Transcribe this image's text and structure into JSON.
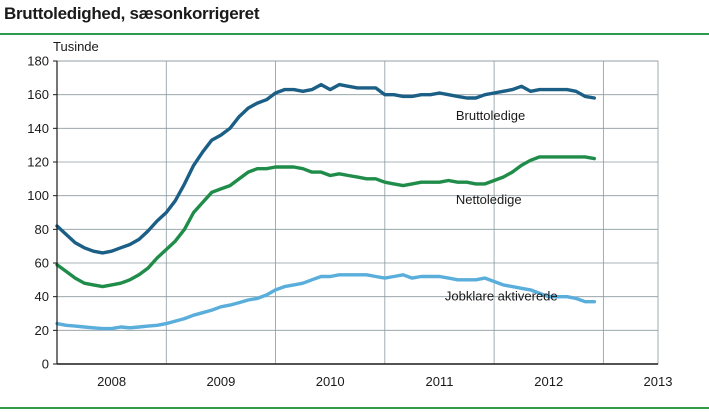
{
  "header": {
    "title": "Bruttoledighed, sæsonkorrigeret"
  },
  "colors": {
    "rule": "#2e9a4a",
    "grid": "#8c9aa0",
    "axis": "#1a1a1a"
  },
  "chart_data": {
    "type": "line",
    "title": "Bruttoledighed, sæsonkorrigeret",
    "ylabel": "Tusinde",
    "xlabel": "",
    "ylim": [
      0,
      180
    ],
    "xlim": [
      2008.0,
      2013.5
    ],
    "yticks": [
      0,
      20,
      40,
      60,
      80,
      100,
      120,
      140,
      160,
      180
    ],
    "x_tick_labels": [
      "2008",
      "2009",
      "2010",
      "2011",
      "2012",
      "2013"
    ],
    "grid": true,
    "series": [
      {
        "name": "Bruttoledige",
        "color": "#1c5f86",
        "x": [
          2008.0,
          2008.083,
          2008.167,
          2008.25,
          2008.333,
          2008.417,
          2008.5,
          2008.583,
          2008.667,
          2008.75,
          2008.833,
          2008.917,
          2009.0,
          2009.083,
          2009.167,
          2009.25,
          2009.333,
          2009.417,
          2009.5,
          2009.583,
          2009.667,
          2009.75,
          2009.833,
          2009.917,
          2010.0,
          2010.083,
          2010.167,
          2010.25,
          2010.333,
          2010.417,
          2010.5,
          2010.583,
          2010.667,
          2010.75,
          2010.833,
          2010.917,
          2011.0,
          2011.083,
          2011.167,
          2011.25,
          2011.333,
          2011.417,
          2011.5,
          2011.583,
          2011.667,
          2011.75,
          2011.833,
          2011.917,
          2012.0,
          2012.083,
          2012.167,
          2012.25,
          2012.333,
          2012.417,
          2012.5,
          2012.583,
          2012.667,
          2012.75,
          2012.833,
          2012.917
        ],
        "values": [
          82,
          77,
          72,
          69,
          67,
          66,
          67,
          69,
          71,
          74,
          79,
          85,
          90,
          97,
          107,
          118,
          126,
          133,
          136,
          140,
          147,
          152,
          155,
          157,
          161,
          163,
          163,
          162,
          163,
          166,
          163,
          166,
          165,
          164,
          164,
          164,
          160,
          160,
          159,
          159,
          160,
          160,
          161,
          160,
          159,
          158,
          158,
          160,
          161,
          162,
          163,
          165,
          162,
          163,
          163,
          163,
          163,
          162,
          159,
          158
        ]
      },
      {
        "name": "Nettoledige",
        "color": "#1f8c4a",
        "x": [
          2008.0,
          2008.083,
          2008.167,
          2008.25,
          2008.333,
          2008.417,
          2008.5,
          2008.583,
          2008.667,
          2008.75,
          2008.833,
          2008.917,
          2009.0,
          2009.083,
          2009.167,
          2009.25,
          2009.333,
          2009.417,
          2009.5,
          2009.583,
          2009.667,
          2009.75,
          2009.833,
          2009.917,
          2010.0,
          2010.083,
          2010.167,
          2010.25,
          2010.333,
          2010.417,
          2010.5,
          2010.583,
          2010.667,
          2010.75,
          2010.833,
          2010.917,
          2011.0,
          2011.083,
          2011.167,
          2011.25,
          2011.333,
          2011.417,
          2011.5,
          2011.583,
          2011.667,
          2011.75,
          2011.833,
          2011.917,
          2012.0,
          2012.083,
          2012.167,
          2012.25,
          2012.333,
          2012.417,
          2012.5,
          2012.583,
          2012.667,
          2012.75,
          2012.833,
          2012.917
        ],
        "values": [
          59,
          55,
          51,
          48,
          47,
          46,
          47,
          48,
          50,
          53,
          57,
          63,
          68,
          73,
          80,
          90,
          96,
          102,
          104,
          106,
          110,
          114,
          116,
          116,
          117,
          117,
          117,
          116,
          114,
          114,
          112,
          113,
          112,
          111,
          110,
          110,
          108,
          107,
          106,
          107,
          108,
          108,
          108,
          109,
          108,
          108,
          107,
          107,
          109,
          111,
          114,
          118,
          121,
          123,
          123,
          123,
          123,
          123,
          123,
          122
        ]
      },
      {
        "name": "Jobklare aktiverede",
        "color": "#5aaedb",
        "x": [
          2008.0,
          2008.083,
          2008.167,
          2008.25,
          2008.333,
          2008.417,
          2008.5,
          2008.583,
          2008.667,
          2008.75,
          2008.833,
          2008.917,
          2009.0,
          2009.083,
          2009.167,
          2009.25,
          2009.333,
          2009.417,
          2009.5,
          2009.583,
          2009.667,
          2009.75,
          2009.833,
          2009.917,
          2010.0,
          2010.083,
          2010.167,
          2010.25,
          2010.333,
          2010.417,
          2010.5,
          2010.583,
          2010.667,
          2010.75,
          2010.833,
          2010.917,
          2011.0,
          2011.083,
          2011.167,
          2011.25,
          2011.333,
          2011.417,
          2011.5,
          2011.583,
          2011.667,
          2011.75,
          2011.833,
          2011.917,
          2012.0,
          2012.083,
          2012.167,
          2012.25,
          2012.333,
          2012.417,
          2012.5,
          2012.583,
          2012.667,
          2012.75,
          2012.833,
          2012.917
        ],
        "values": [
          24,
          23,
          22.5,
          22,
          21.5,
          21,
          21,
          22,
          21.5,
          22,
          22.5,
          23,
          24,
          25.5,
          27,
          29,
          30.5,
          32,
          34,
          35,
          36.5,
          38,
          39,
          41,
          44,
          46,
          47,
          48,
          50,
          52,
          52,
          53,
          53,
          53,
          53,
          52,
          51,
          52,
          53,
          51,
          52,
          52,
          52,
          51,
          50,
          50,
          50,
          51,
          49,
          47,
          46,
          45,
          44,
          42,
          40,
          40,
          40,
          39,
          37,
          37
        ]
      }
    ],
    "annotations": [
      {
        "text": "Bruttoledige",
        "series": "Bruttoledige"
      },
      {
        "text": "Nettoledige",
        "series": "Nettoledige"
      },
      {
        "text": "Jobklare aktiverede",
        "series": "Jobklare aktiverede"
      }
    ]
  }
}
